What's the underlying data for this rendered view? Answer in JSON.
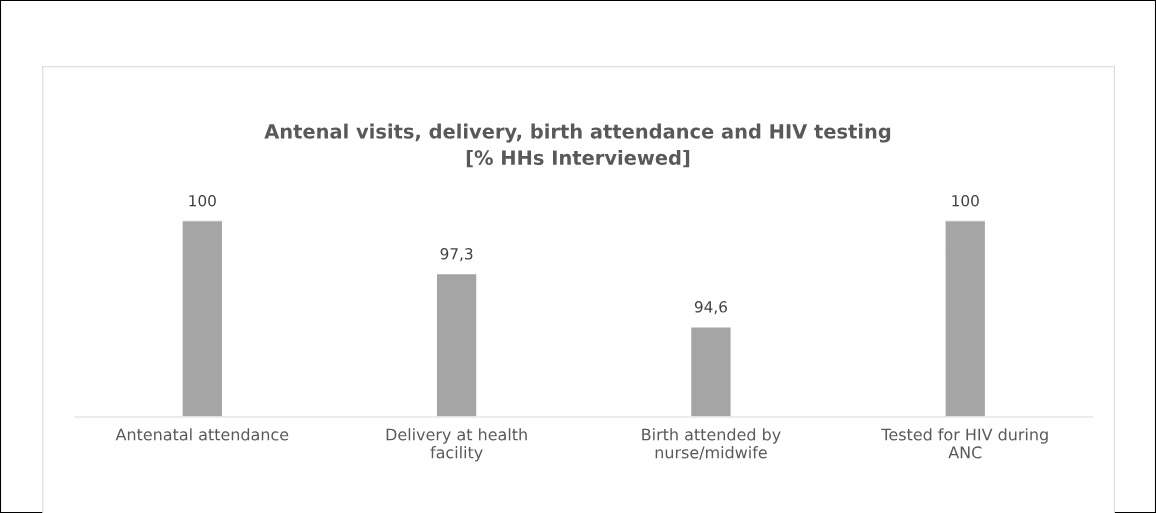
{
  "chart_data": {
    "type": "bar",
    "title": "Antenal visits, delivery, birth attendance and HIV testing\n[% HHs Interviewed]",
    "categories": [
      "Antenatal attendance",
      "Delivery at health\nfacility",
      "Birth attended by\nnurse/midwife",
      "Tested for HIV during\nANC"
    ],
    "values": [
      100,
      97.3,
      94.6,
      100
    ],
    "value_labels": [
      "100",
      "97,3",
      "94,6",
      "100"
    ],
    "color": "#a5a5a5",
    "ylim": [
      90,
      100
    ],
    "grid": false,
    "legend": false
  }
}
